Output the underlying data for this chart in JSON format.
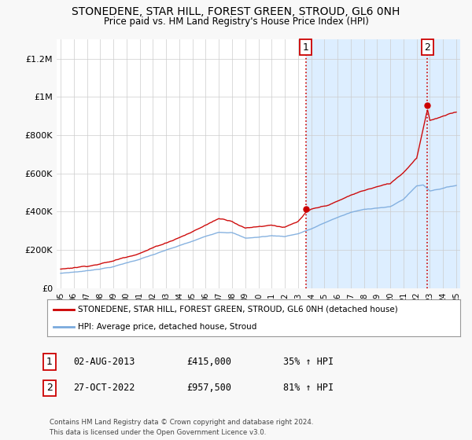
{
  "title": "STONEDENE, STAR HILL, FOREST GREEN, STROUD, GL6 0NH",
  "subtitle": "Price paid vs. HM Land Registry's House Price Index (HPI)",
  "legend_line1": "STONEDENE, STAR HILL, FOREST GREEN, STROUD, GL6 0NH (detached house)",
  "legend_line2": "HPI: Average price, detached house, Stroud",
  "transaction1_label": "1",
  "transaction1_date": "02-AUG-2013",
  "transaction1_price": "£415,000",
  "transaction1_hpi": "35% ↑ HPI",
  "transaction1_year": 2013.58,
  "transaction1_value": 415000,
  "transaction2_label": "2",
  "transaction2_date": "27-OCT-2022",
  "transaction2_price": "£957,500",
  "transaction2_hpi": "81% ↑ HPI",
  "transaction2_year": 2022.82,
  "transaction2_value": 957500,
  "footnote1": "Contains HM Land Registry data © Crown copyright and database right 2024.",
  "footnote2": "This data is licensed under the Open Government Licence v3.0.",
  "red_color": "#cc0000",
  "blue_color": "#7aaadd",
  "shade_color": "#ddeeff",
  "ylim": [
    0,
    1300000
  ],
  "yticks": [
    0,
    200000,
    400000,
    600000,
    800000,
    1000000,
    1200000
  ],
  "ytick_labels": [
    "£0",
    "£200K",
    "£400K",
    "£600K",
    "£800K",
    "£1M",
    "£1.2M"
  ],
  "bg_color": "#f8f8f8",
  "plot_bg": "#ffffff",
  "grid_color": "#cccccc"
}
